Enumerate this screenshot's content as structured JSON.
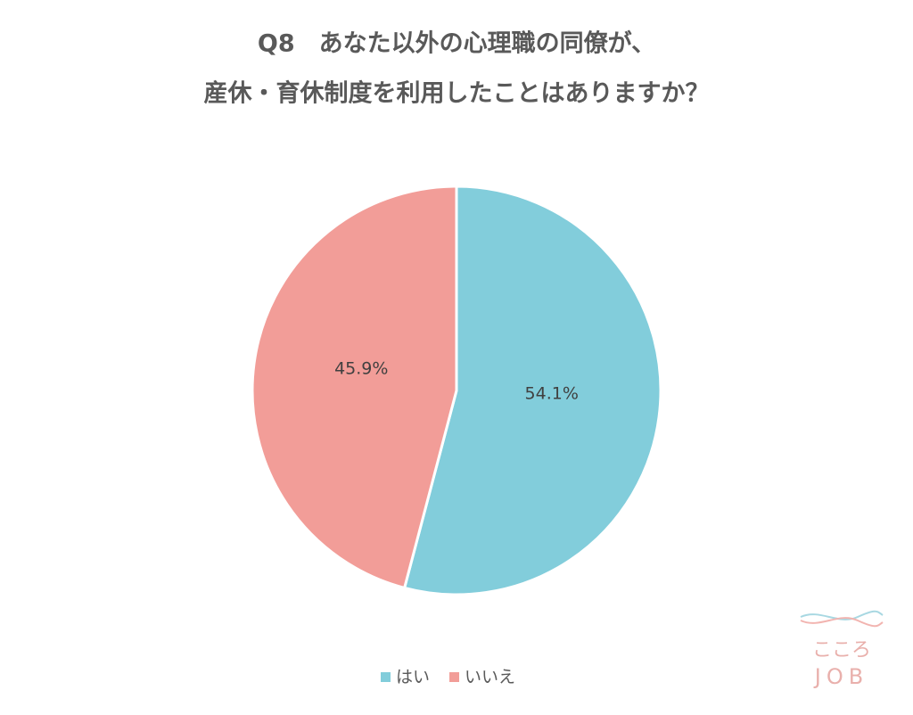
{
  "chart_data": {
    "type": "pie",
    "title": [
      "Q8　あなた以外の心理職の同僚が、",
      "産休・育休制度を利用したことはありますか？"
    ],
    "categories": [
      "はい",
      "いいえ"
    ],
    "values": [
      54.1,
      45.9
    ],
    "value_labels": [
      "54.1%",
      "45.9%"
    ],
    "colors": [
      "#82cddb",
      "#f29d98"
    ],
    "legend": "bottom"
  },
  "watermark": [
    "こころ",
    "JOB"
  ]
}
